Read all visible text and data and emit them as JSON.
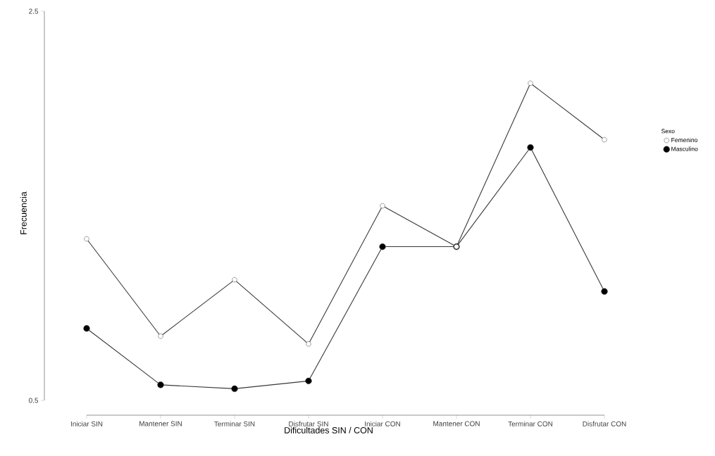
{
  "chart_data": {
    "type": "line",
    "xlabel": "Dificultades SIN / CON",
    "ylabel": "Frecuencia",
    "legend_title": "Sexo",
    "categories": [
      "Iniciar SIN",
      "Mantener SIN",
      "Terminar SIN",
      "Disfrutar SIN",
      "Iniciar CON",
      "Mantener CON",
      "Terminar CON",
      "Disfrutar CON"
    ],
    "series": [
      {
        "name": "Femenino",
        "color": "#ffffff",
        "values": [
          1.33,
          0.83,
          1.12,
          0.79,
          1.5,
          1.29,
          2.13,
          1.84
        ]
      },
      {
        "name": "Masculino",
        "color": "#000000",
        "values": [
          0.87,
          0.58,
          0.56,
          0.6,
          1.29,
          1.29,
          1.8,
          1.06
        ]
      }
    ],
    "ylim": [
      0.5,
      2.5
    ],
    "yticks": [
      0.5,
      2.5
    ],
    "legend": "right",
    "marker": "circle",
    "line_style": "solid",
    "grid": false
  }
}
